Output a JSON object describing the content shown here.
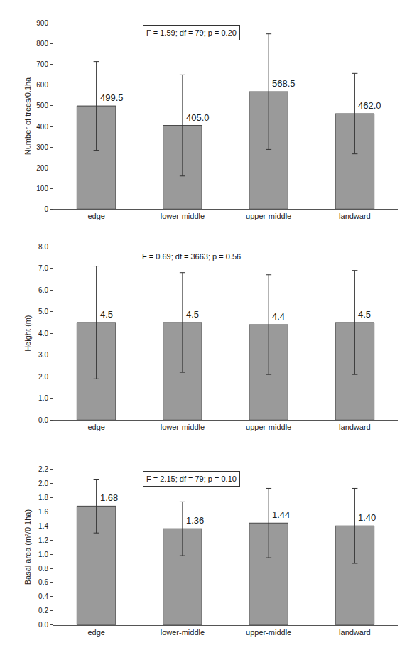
{
  "chart_data": [
    {
      "type": "bar",
      "annotation": "F = 1.59; df = 79; p = 0.20",
      "y_label": "Number of trees/0.1ha",
      "categories": [
        "edge",
        "lower-middle",
        "upper-middle",
        "landward"
      ],
      "values": [
        499.5,
        405.0,
        568.5,
        462.0
      ],
      "value_labels": [
        "499.5",
        "405.0",
        "568.5",
        "462.0"
      ],
      "error": [
        215,
        245,
        280,
        195
      ],
      "color": "#9a9a9a",
      "data_labels": true,
      "grid": false,
      "ylim": [
        0,
        900
      ],
      "yticks": [
        0,
        100,
        200,
        300,
        400,
        500,
        600,
        700,
        800,
        900
      ]
    },
    {
      "type": "bar",
      "annotation": "F = 0.69; df = 3663; p = 0.56",
      "y_label": "Height (m)",
      "categories": [
        "edge",
        "lower-middle",
        "upper-middle",
        "landward"
      ],
      "values": [
        4.5,
        4.5,
        4.4,
        4.5
      ],
      "error": [
        2.6,
        2.3,
        2.3,
        2.4
      ],
      "color": "#9a9a9a",
      "data_labels": true,
      "grid": false,
      "ylim": [
        0,
        8
      ],
      "yticks": [
        {
          "value": 0,
          "label": "0.0"
        },
        {
          "value": 1,
          "label": "1.0"
        },
        {
          "value": 2,
          "label": "2.0"
        },
        {
          "value": 3,
          "label": "3.0"
        },
        {
          "value": 4,
          "label": "4.0"
        },
        {
          "value": 5,
          "label": "5.0"
        },
        {
          "value": 6,
          "label": "6.0"
        },
        {
          "value": 7,
          "label": "7.0"
        },
        {
          "value": 8,
          "label": "8.0"
        }
      ]
    },
    {
      "type": "bar",
      "annotation": "F = 2.15; df = 79; p = 0.10",
      "y_label": "Basal area (m²/0.1ha)",
      "categories": [
        "edge",
        "lower-middle",
        "upper-middle",
        "landward"
      ],
      "values": [
        1.68,
        1.36,
        1.44,
        1.4
      ],
      "value_labels": [
        "1.68",
        "1.36",
        "1.44",
        "1.40"
      ],
      "error": [
        0.38,
        0.38,
        0.49,
        0.53
      ],
      "color": "#9a9a9a",
      "data_labels": true,
      "grid": false,
      "ylim": [
        0,
        2.2
      ],
      "yticks": [
        {
          "value": 0,
          "label": "0.0"
        },
        {
          "value": 0.2,
          "label": "0.2"
        },
        {
          "value": 0.4,
          "label": "0.4"
        },
        {
          "value": 0.6,
          "label": "0.6"
        },
        {
          "value": 0.8,
          "label": "0.8"
        },
        {
          "value": 1,
          "label": "1.0"
        },
        {
          "value": 1.2,
          "label": "1.2"
        },
        {
          "value": 1.4,
          "label": "1.4"
        },
        {
          "value": 1.6,
          "label": "1.6"
        },
        {
          "value": 1.8,
          "label": "1.8"
        },
        {
          "value": 2,
          "label": "2.0"
        },
        {
          "value": 2.2,
          "label": "2.2"
        }
      ]
    }
  ]
}
